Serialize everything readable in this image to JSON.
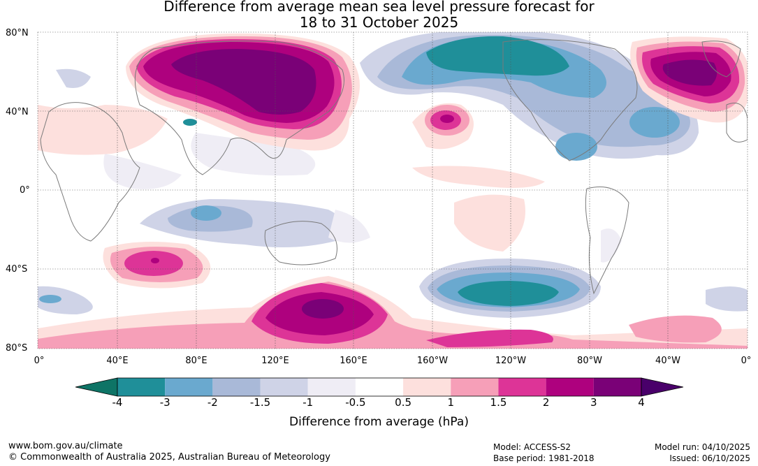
{
  "title": {
    "line1": "Difference from average mean sea level pressure forecast for",
    "line2": "18 to 31 October 2025"
  },
  "map": {
    "lat_labels": [
      "80°N",
      "40°N",
      "0°",
      "40°S",
      "80°S"
    ],
    "lon_labels": [
      "0°",
      "40°E",
      "80°E",
      "120°E",
      "160°E",
      "160°W",
      "120°W",
      "80°W",
      "40°W",
      "0°"
    ]
  },
  "colorbar": {
    "ticks": [
      "-4",
      "-3",
      "-2",
      "-1.5",
      "-1",
      "-0.5",
      "0.5",
      "1",
      "1.5",
      "2",
      "3",
      "4"
    ],
    "colors": [
      "#0e7466",
      "#1f8f99",
      "#6aa9cf",
      "#a9b9d8",
      "#cfd3e7",
      "#efedf5",
      "#ffffff",
      "#fde0dd",
      "#f69fb8",
      "#dd3497",
      "#ae017e",
      "#7a0177",
      "#49006a"
    ],
    "title": "Difference from average (hPa)"
  },
  "footer": {
    "url": "www.bom.gov.au/climate",
    "copyright": "© Commonwealth of Australia 2025, Australian Bureau of Meteorology",
    "model": "Model: ACCESS-S2",
    "base_period": "Base period: 1981-2018",
    "model_run": "Model run: 04/10/2025",
    "issued": "Issued: 06/10/2025"
  }
}
